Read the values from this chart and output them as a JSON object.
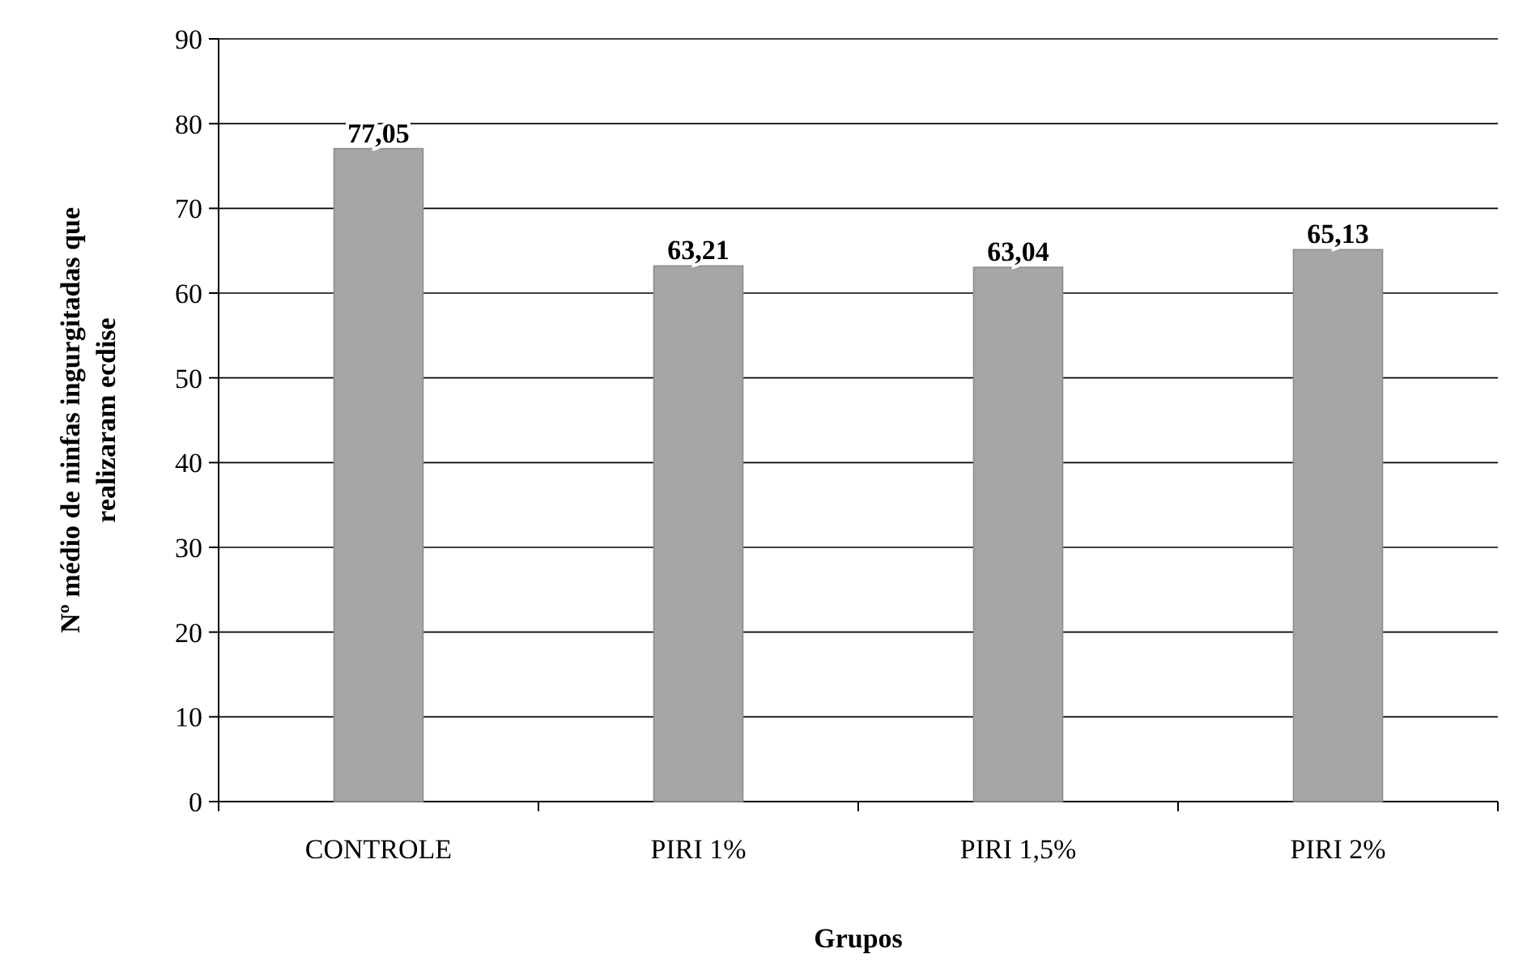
{
  "chart_data": {
    "type": "bar",
    "xlabel": "Grupos",
    "ylabel": "Nº médio de ninfas ingurgitadas que\nrealizaram ecdise",
    "categories": [
      "CONTROLE",
      "PIRI 1%",
      "PIRI 1,5%",
      "PIRI 2%"
    ],
    "values": [
      77.05,
      63.21,
      63.04,
      65.13
    ],
    "color": "#a6a6a6",
    "ylim": [
      0,
      90
    ],
    "yticks": [
      0,
      10,
      20,
      30,
      40,
      50,
      60,
      70,
      80,
      90
    ],
    "grid": "y",
    "value_labels": [
      "77,05",
      "63,21",
      "63,04",
      "65,13"
    ]
  }
}
